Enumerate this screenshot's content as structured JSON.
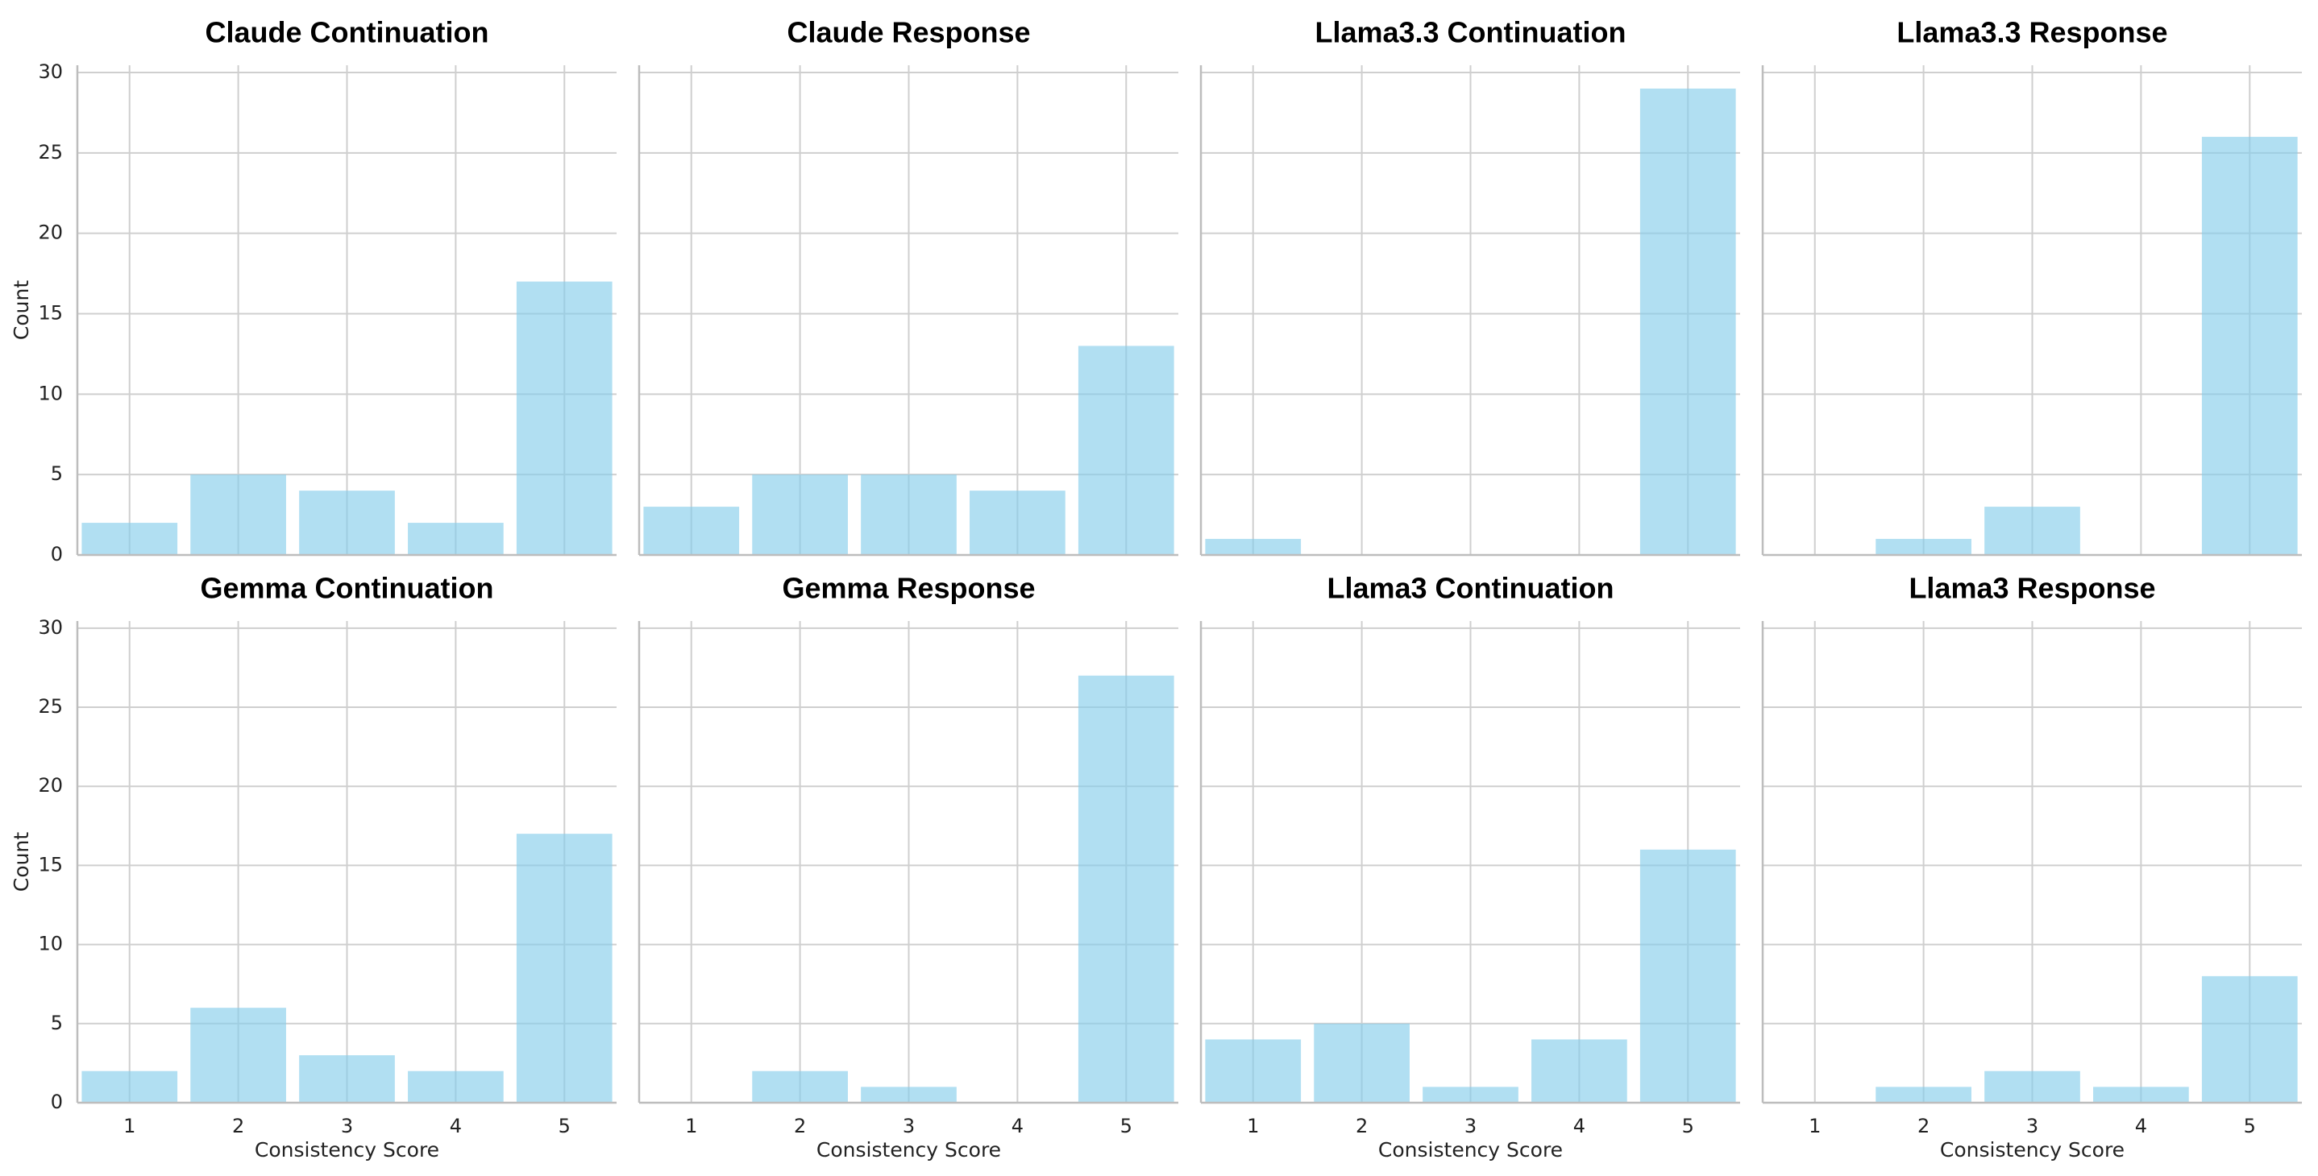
{
  "chart_data": [
    {
      "type": "bar",
      "title": "Claude Continuation",
      "ylabel": "Count",
      "x": [
        1,
        2,
        3,
        4,
        5
      ],
      "values": [
        2,
        5,
        4,
        2,
        17
      ],
      "color": "#87ceeb",
      "xlim": [
        0.52,
        5.48
      ],
      "ylim": [
        0,
        30.45
      ],
      "xticks": [
        1,
        2,
        3,
        4,
        5
      ],
      "yticks": [
        0,
        5,
        10,
        15,
        20,
        25,
        30
      ],
      "xtick_labels": false,
      "ytick_labels": true,
      "grid": true
    },
    {
      "type": "bar",
      "title": "Claude Response",
      "x": [
        1,
        2,
        3,
        4,
        5
      ],
      "values": [
        3,
        5,
        5,
        4,
        13
      ],
      "color": "#87ceeb",
      "xlim": [
        0.52,
        5.48
      ],
      "ylim": [
        0,
        30.45
      ],
      "xticks": [
        1,
        2,
        3,
        4,
        5
      ],
      "yticks": [
        0,
        5,
        10,
        15,
        20,
        25,
        30
      ],
      "xtick_labels": false,
      "ytick_labels": false,
      "grid": true
    },
    {
      "type": "bar",
      "title": "Llama3.3 Continuation",
      "x": [
        1,
        2,
        3,
        4,
        5
      ],
      "values": [
        1,
        0,
        0,
        0,
        29
      ],
      "color": "#87ceeb",
      "xlim": [
        0.52,
        5.48
      ],
      "ylim": [
        0,
        30.45
      ],
      "xticks": [
        1,
        2,
        3,
        4,
        5
      ],
      "yticks": [
        0,
        5,
        10,
        15,
        20,
        25,
        30
      ],
      "xtick_labels": false,
      "ytick_labels": false,
      "grid": true
    },
    {
      "type": "bar",
      "title": "Llama3.3 Response",
      "x": [
        1,
        2,
        3,
        4,
        5
      ],
      "values": [
        0,
        1,
        3,
        0,
        26
      ],
      "color": "#87ceeb",
      "xlim": [
        0.52,
        5.48
      ],
      "ylim": [
        0,
        30.45
      ],
      "xticks": [
        1,
        2,
        3,
        4,
        5
      ],
      "yticks": [
        0,
        5,
        10,
        15,
        20,
        25,
        30
      ],
      "xtick_labels": false,
      "ytick_labels": false,
      "grid": true
    },
    {
      "type": "bar",
      "title": "Gemma Continuation",
      "xlabel": "Consistency Score",
      "ylabel": "Count",
      "x": [
        1,
        2,
        3,
        4,
        5
      ],
      "values": [
        2,
        6,
        3,
        2,
        17
      ],
      "color": "#87ceeb",
      "xlim": [
        0.52,
        5.48
      ],
      "ylim": [
        0,
        30.45
      ],
      "xticks": [
        1,
        2,
        3,
        4,
        5
      ],
      "yticks": [
        0,
        5,
        10,
        15,
        20,
        25,
        30
      ],
      "xtick_labels": true,
      "ytick_labels": true,
      "grid": true
    },
    {
      "type": "bar",
      "title": "Gemma Response",
      "xlabel": "Consistency Score",
      "x": [
        1,
        2,
        3,
        4,
        5
      ],
      "values": [
        0,
        2,
        1,
        0,
        27
      ],
      "color": "#87ceeb",
      "xlim": [
        0.52,
        5.48
      ],
      "ylim": [
        0,
        30.45
      ],
      "xticks": [
        1,
        2,
        3,
        4,
        5
      ],
      "yticks": [
        0,
        5,
        10,
        15,
        20,
        25,
        30
      ],
      "xtick_labels": true,
      "ytick_labels": false,
      "grid": true
    },
    {
      "type": "bar",
      "title": "Llama3 Continuation",
      "xlabel": "Consistency Score",
      "x": [
        1,
        2,
        3,
        4,
        5
      ],
      "values": [
        4,
        5,
        1,
        4,
        16
      ],
      "color": "#87ceeb",
      "xlim": [
        0.52,
        5.48
      ],
      "ylim": [
        0,
        30.45
      ],
      "xticks": [
        1,
        2,
        3,
        4,
        5
      ],
      "yticks": [
        0,
        5,
        10,
        15,
        20,
        25,
        30
      ],
      "xtick_labels": true,
      "ytick_labels": false,
      "grid": true
    },
    {
      "type": "bar",
      "title": "Llama3 Response",
      "xlabel": "Consistency Score",
      "x": [
        1,
        2,
        3,
        4,
        5
      ],
      "values": [
        0,
        1,
        2,
        1,
        8
      ],
      "color": "#87ceeb",
      "xlim": [
        0.52,
        5.48
      ],
      "ylim": [
        0,
        30.45
      ],
      "xticks": [
        1,
        2,
        3,
        4,
        5
      ],
      "yticks": [
        0,
        5,
        10,
        15,
        20,
        25,
        30
      ],
      "xtick_labels": true,
      "ytick_labels": false,
      "grid": true
    }
  ]
}
